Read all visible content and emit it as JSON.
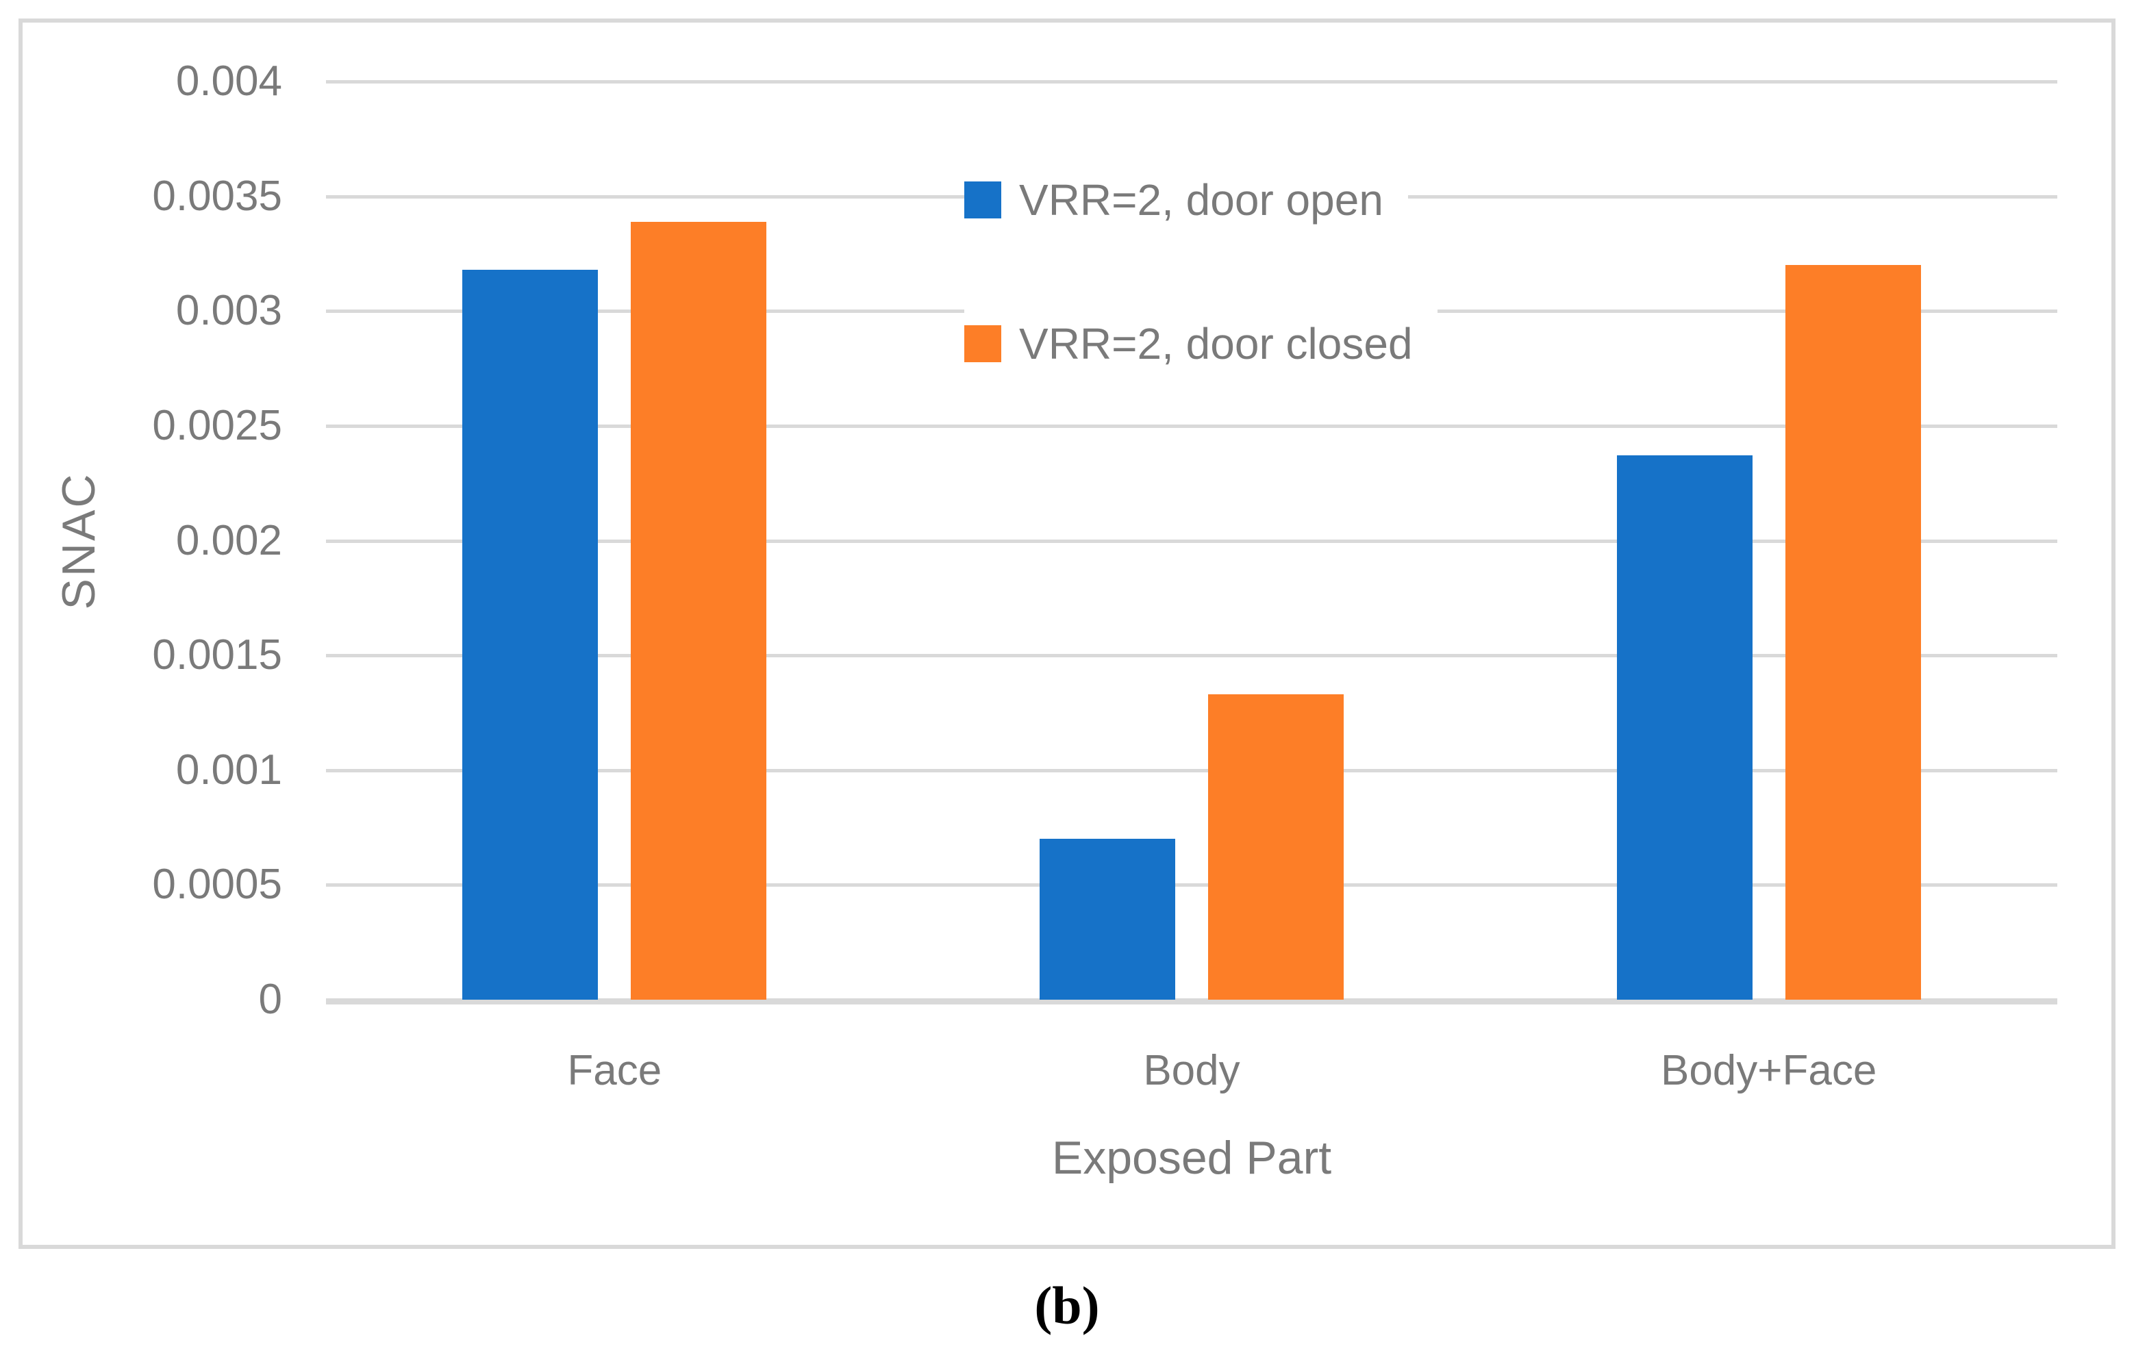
{
  "figure": {
    "caption": "(b)"
  },
  "colors": {
    "series_open": "#1672C8",
    "series_closed": "#FD7E27",
    "gridline": "#D9D9D9",
    "frame_border": "#D9D9D9",
    "axis_text": "#7A7A7A",
    "caption_text": "#000000",
    "background": "#FFFFFF"
  },
  "chart_data": {
    "type": "bar",
    "title": "",
    "xlabel": "Exposed Part",
    "ylabel": "SNAC",
    "categories": [
      "Face",
      "Body",
      "Body+Face"
    ],
    "series": [
      {
        "name": "VRR=2, door open",
        "color": "#1672C8",
        "values": [
          0.00318,
          0.0007,
          0.00237
        ]
      },
      {
        "name": "VRR=2, door closed",
        "color": "#FD7E27",
        "values": [
          0.00339,
          0.00133,
          0.0032
        ]
      }
    ],
    "ylim": [
      0,
      0.004
    ],
    "ytick_step": 0.0005,
    "ytick_labels": [
      "0.004",
      "0.0035",
      "0.003",
      "0.0025",
      "0.002",
      "0.0015",
      "0.001",
      "0.0005",
      "0"
    ],
    "grid": "horizontal-only",
    "legend_position": "inside-top-center"
  }
}
